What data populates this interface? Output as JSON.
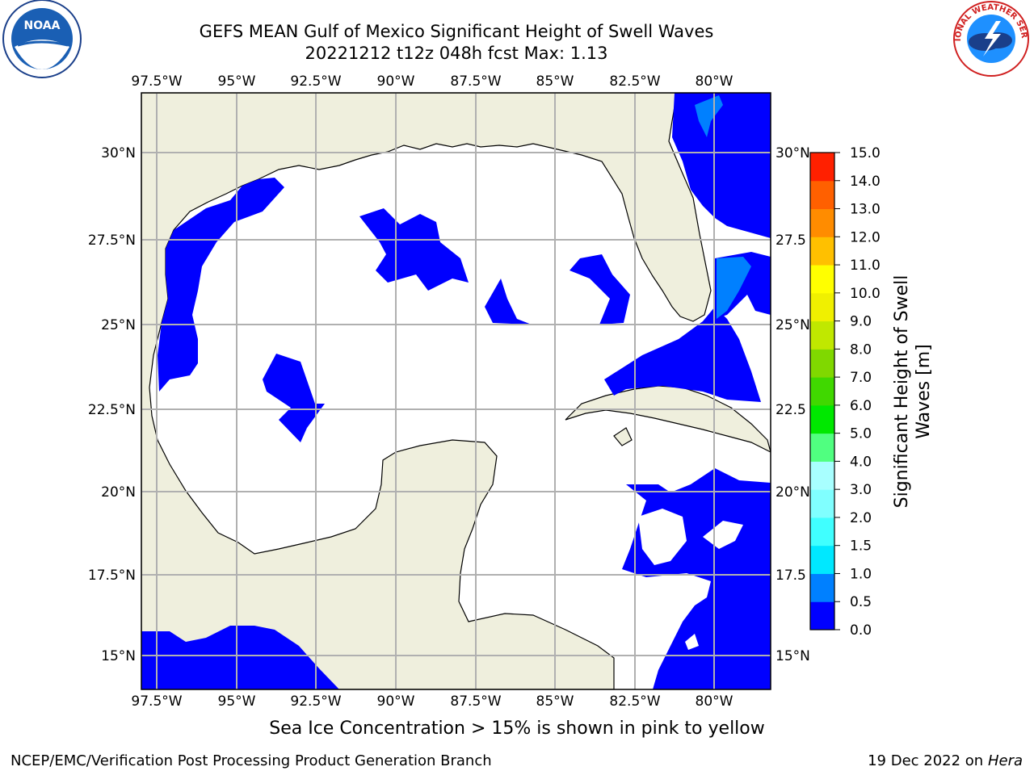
{
  "header": {
    "title_line1": "GEFS MEAN Gulf of Mexico Significant Height of Swell Waves",
    "title_line2": "20221212 t12z 048h fcst   Max: 1.13"
  },
  "logos": {
    "left": "NOAA",
    "right": "NATIONAL WEATHER SERVICE"
  },
  "map": {
    "lon_ticks": [
      "97.5°W",
      "95°W",
      "92.5°W",
      "90°W",
      "87.5°W",
      "85°W",
      "82.5°W",
      "80°W"
    ],
    "lat_ticks_left": [
      "30°N",
      "27.5°N",
      "25°N",
      "22.5°N",
      "20°N",
      "17.5°N",
      "15°N"
    ],
    "lat_ticks_right": [
      "30°N",
      "27.5",
      "25°N",
      "22.5",
      "20°N",
      "17.5",
      "15°N"
    ],
    "colors": {
      "land": "#efefdd",
      "ocean": "#ffffff",
      "swell_low": "#0000ff",
      "swell_mid": "#0080ff",
      "grid": "#b0b0b0"
    }
  },
  "colorbar": {
    "label_line1": "Significant Height of Swell",
    "label_line2": "Waves [m]",
    "ticks": [
      "15.0",
      "14.0",
      "13.0",
      "12.0",
      "11.0",
      "10.0",
      "9.0",
      "8.0",
      "7.0",
      "6.0",
      "5.0",
      "4.0",
      "3.0",
      "2.0",
      "1.5",
      "1.0",
      "0.5",
      "0.0"
    ],
    "colors": [
      "#0000ff",
      "#0080ff",
      "#00e8ff",
      "#40ffff",
      "#80ffff",
      "#a8ffff",
      "#50ff80",
      "#00e800",
      "#40d800",
      "#80d800",
      "#c0e800",
      "#f0f000",
      "#ffff00",
      "#ffc000",
      "#ff8c00",
      "#ff6000",
      "#ff2000",
      "#ff0000"
    ]
  },
  "caption": "Sea Ice Concentration > 15% is shown in pink to yellow",
  "footer": {
    "left": "NCEP/EMC/Verification Post Processing Product Generation Branch",
    "right_date": "19 Dec 2022 on",
    "right_host": "Hera"
  }
}
